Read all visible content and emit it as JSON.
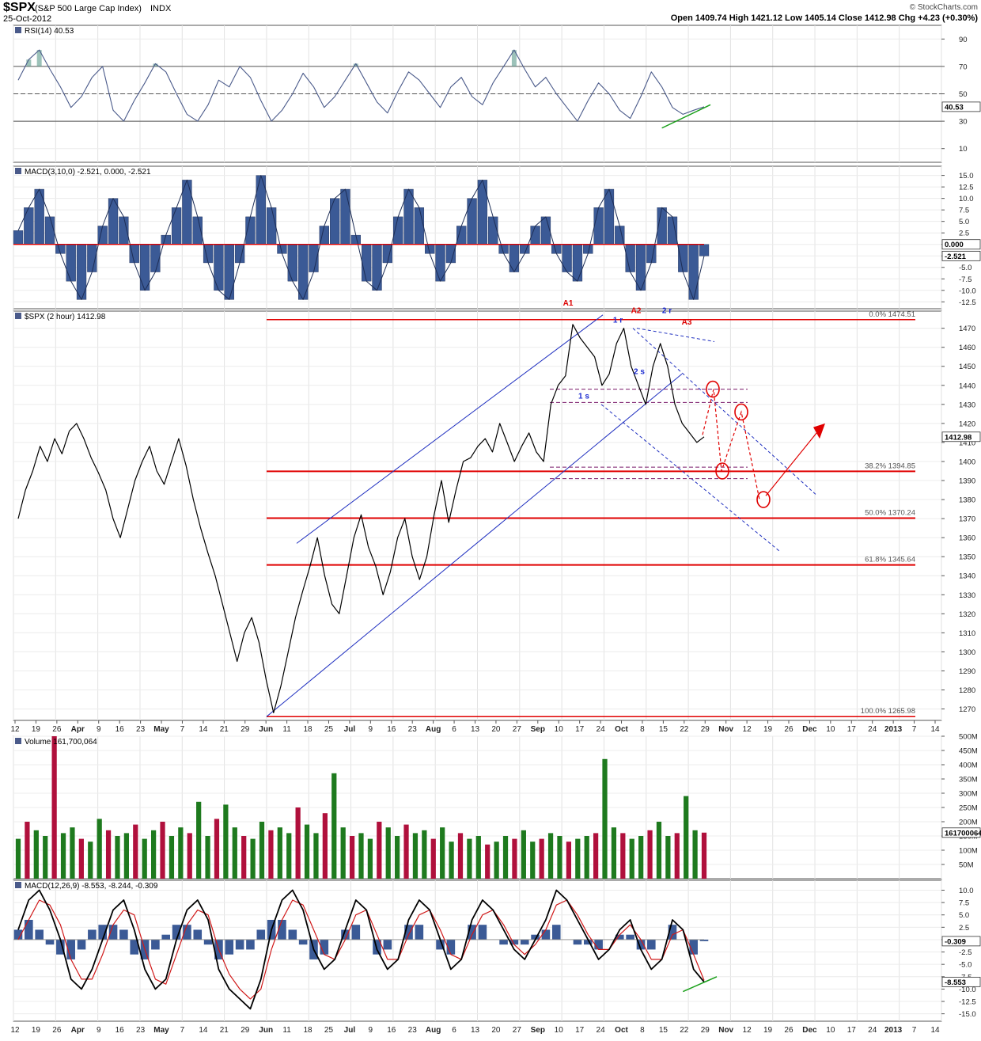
{
  "header": {
    "symbol": "$SPX",
    "name": "(S&P 500 Large Cap Index)",
    "exchange": "INDX",
    "date": "25-Oct-2012",
    "watermark": "© StockCharts.com",
    "ohlc": "Open 1409.74  High 1421.12  Low 1405.14  Close 1412.98  Chg +4.23 (+0.30%)"
  },
  "colors": {
    "price": "#000000",
    "indicator_line": "#4a5a8a",
    "histogram_fill": "#3b5a96",
    "overbought_fill": "#5a9a8a",
    "fib_line": "#e00000",
    "channel": "#2030c0",
    "projection": "#e00000",
    "vol_up": "#1e7a1e",
    "vol_down": "#b0103c"
  },
  "chart_data": [
    {
      "type": "line",
      "panel": "rsi",
      "label": "RSI(14) 40.53",
      "ylim": [
        0,
        100
      ],
      "y_ticks": [
        10,
        30,
        50,
        70,
        90
      ],
      "reference_lines": [
        30,
        50,
        70
      ],
      "last_value_label": "40.53",
      "divergence_annotation": "green support line",
      "series": [
        {
          "name": "RSI(14)",
          "values": [
            60,
            75,
            82,
            68,
            55,
            40,
            48,
            62,
            70,
            38,
            30,
            45,
            58,
            72,
            66,
            50,
            35,
            30,
            42,
            60,
            55,
            70,
            62,
            45,
            30,
            38,
            50,
            65,
            55,
            40,
            48,
            60,
            72,
            58,
            44,
            36,
            52,
            66,
            60,
            50,
            40,
            55,
            62,
            48,
            42,
            58,
            70,
            82,
            68,
            55,
            62,
            50,
            40,
            30,
            45,
            58,
            50,
            38,
            32,
            48,
            66,
            55,
            40,
            35,
            38,
            40.53
          ]
        }
      ]
    },
    {
      "type": "bar",
      "panel": "macd_fast",
      "label": "MACD(3,10,0) -2.521, 0.000, -2.521",
      "ylim": [
        -14,
        17
      ],
      "y_ticks": [
        -12.5,
        -10.0,
        -7.5,
        -5.0,
        -2.5,
        0.0,
        2.5,
        5.0,
        7.5,
        10.0,
        12.5,
        15.0
      ],
      "last_value_labels": [
        "0.000",
        "-2.521"
      ],
      "series": [
        {
          "name": "MACD(3,10,0)",
          "values": [
            3,
            8,
            12,
            6,
            -2,
            -8,
            -12,
            -6,
            4,
            10,
            6,
            -4,
            -10,
            -6,
            2,
            8,
            14,
            6,
            -4,
            -10,
            -12,
            -4,
            6,
            15,
            8,
            -2,
            -8,
            -12,
            -6,
            4,
            10,
            12,
            2,
            -8,
            -10,
            -4,
            6,
            12,
            8,
            -2,
            -8,
            -4,
            4,
            10,
            14,
            6,
            -2,
            -6,
            -2,
            4,
            6,
            -2,
            -6,
            -8,
            -2,
            8,
            12,
            4,
            -6,
            -10,
            -4,
            8,
            6,
            -6,
            -12,
            -2.521
          ]
        }
      ]
    },
    {
      "type": "line",
      "panel": "price",
      "label": "$SPX (2 hour) 1412.98",
      "ylim": [
        1264,
        1479
      ],
      "y_ticks": [
        1270,
        1280,
        1290,
        1300,
        1310,
        1320,
        1330,
        1340,
        1350,
        1360,
        1370,
        1380,
        1390,
        1400,
        1410,
        1420,
        1430,
        1440,
        1450,
        1460,
        1470
      ],
      "x_tick_labels": [
        "12",
        "19",
        "26",
        "Apr",
        "9",
        "16",
        "23",
        "May",
        "7",
        "14",
        "21",
        "29",
        "Jun",
        "11",
        "18",
        "25",
        "Jul",
        "9",
        "16",
        "23",
        "Aug",
        "6",
        "13",
        "20",
        "27",
        "Sep",
        "10",
        "17",
        "24",
        "Oct",
        "8",
        "15",
        "22",
        "29",
        "Nov",
        "12",
        "19",
        "26",
        "Dec",
        "10",
        "17",
        "24",
        "2013",
        "7",
        "14"
      ],
      "last_value_label": "1412.98",
      "series": [
        {
          "name": "$SPX",
          "values": [
            1370,
            1385,
            1395,
            1408,
            1400,
            1412,
            1404,
            1416,
            1420,
            1412,
            1402,
            1394,
            1385,
            1370,
            1360,
            1375,
            1390,
            1400,
            1408,
            1395,
            1388,
            1400,
            1412,
            1398,
            1380,
            1365,
            1352,
            1340,
            1325,
            1310,
            1295,
            1310,
            1318,
            1305,
            1285,
            1268,
            1282,
            1300,
            1318,
            1332,
            1345,
            1360,
            1340,
            1325,
            1320,
            1340,
            1360,
            1372,
            1355,
            1345,
            1330,
            1342,
            1360,
            1370,
            1350,
            1338,
            1350,
            1372,
            1390,
            1368,
            1385,
            1400,
            1402,
            1408,
            1412,
            1405,
            1420,
            1410,
            1400,
            1408,
            1415,
            1405,
            1400,
            1430,
            1440,
            1445,
            1472,
            1465,
            1460,
            1455,
            1440,
            1446,
            1462,
            1470,
            1450,
            1440,
            1430,
            1450,
            1462,
            1450,
            1430,
            1420,
            1415,
            1410,
            1412.98
          ]
        }
      ],
      "fib_levels": [
        {
          "label": "0.0% 1474.51",
          "value": 1474.51
        },
        {
          "label": "38.2% 1394.85",
          "value": 1394.85
        },
        {
          "label": "50.0% 1370.24",
          "value": 1370.24
        },
        {
          "label": "61.8% 1345.64",
          "value": 1345.64
        },
        {
          "label": "100.0% 1265.98",
          "value": 1265.98
        }
      ],
      "wave_labels": [
        {
          "text": "A1",
          "color": "red"
        },
        {
          "text": "A2",
          "color": "red"
        },
        {
          "text": "A3",
          "color": "red"
        },
        {
          "text": "1 r",
          "color": "blue"
        },
        {
          "text": "2 r",
          "color": "blue"
        },
        {
          "text": "1 s",
          "color": "blue"
        },
        {
          "text": "2 s",
          "color": "blue"
        }
      ]
    },
    {
      "type": "bar",
      "panel": "volume",
      "label": "Volume 161,700,064",
      "ylim": [
        0,
        500000000
      ],
      "y_tick_labels": [
        "50M",
        "100M",
        "150M",
        "200M",
        "250M",
        "300M",
        "350M",
        "400M",
        "450M",
        "500M"
      ],
      "last_value_label": "161700064",
      "series": [
        {
          "name": "Volume",
          "values": [
            140000000,
            200000000,
            170000000,
            150000000,
            500000000,
            160000000,
            180000000,
            140000000,
            130000000,
            210000000,
            170000000,
            150000000,
            160000000,
            190000000,
            140000000,
            170000000,
            200000000,
            150000000,
            180000000,
            160000000,
            270000000,
            150000000,
            210000000,
            260000000,
            180000000,
            150000000,
            140000000,
            200000000,
            170000000,
            180000000,
            160000000,
            250000000,
            190000000,
            160000000,
            230000000,
            370000000,
            180000000,
            150000000,
            160000000,
            140000000,
            200000000,
            180000000,
            150000000,
            190000000,
            160000000,
            170000000,
            140000000,
            180000000,
            130000000,
            160000000,
            140000000,
            150000000,
            120000000,
            130000000,
            150000000,
            140000000,
            170000000,
            130000000,
            140000000,
            160000000,
            150000000,
            130000000,
            140000000,
            150000000,
            160000000,
            420000000,
            180000000,
            160000000,
            140000000,
            150000000,
            170000000,
            200000000,
            150000000,
            160000000,
            290000000,
            170000000,
            161700064
          ]
        }
      ]
    },
    {
      "type": "line",
      "panel": "macd_slow",
      "label": "MACD(12,26,9) -8.553, -8.244, -0.309",
      "ylim": [
        -16.5,
        12
      ],
      "y_ticks": [
        -15.0,
        -12.5,
        -10.0,
        -7.5,
        -5.0,
        -2.5,
        0.0,
        2.5,
        5.0,
        7.5,
        10.0
      ],
      "last_value_labels": [
        "-0.309",
        "-8.553"
      ],
      "series": [
        {
          "name": "MACD",
          "values": [
            2,
            8,
            10,
            6,
            0,
            -8,
            -10,
            -6,
            0,
            6,
            8,
            2,
            -6,
            -10,
            -8,
            0,
            6,
            8,
            4,
            -6,
            -10,
            -12,
            -14,
            -8,
            2,
            8,
            10,
            6,
            -2,
            -6,
            -4,
            2,
            8,
            6,
            -2,
            -6,
            -4,
            4,
            8,
            6,
            0,
            -6,
            -4,
            4,
            8,
            6,
            2,
            -2,
            -4,
            0,
            4,
            10,
            8,
            4,
            0,
            -4,
            -2,
            2,
            4,
            -2,
            -6,
            -4,
            4,
            2,
            -6,
            -8.553
          ]
        },
        {
          "name": "Signal",
          "values": [
            0,
            4,
            8,
            7,
            3,
            -4,
            -8,
            -8,
            -3,
            3,
            6,
            5,
            -2,
            -8,
            -9,
            -3,
            3,
            6,
            5,
            -2,
            -7,
            -10,
            -12,
            -10,
            -2,
            4,
            8,
            7,
            2,
            -3,
            -4,
            0,
            5,
            6,
            1,
            -4,
            -4,
            1,
            5,
            6,
            2,
            -3,
            -4,
            1,
            5,
            6,
            3,
            -1,
            -3,
            -1,
            2,
            7,
            8,
            5,
            1,
            -2,
            -2,
            1,
            3,
            0,
            -4,
            -4,
            1,
            2,
            -3,
            -8.244
          ]
        },
        {
          "name": "Histogram",
          "values": [
            2,
            4,
            2,
            -1,
            -3,
            -4,
            -2,
            2,
            3,
            3,
            2,
            -3,
            -4,
            -2,
            1,
            3,
            3,
            2,
            -1,
            -4,
            -3,
            -2,
            -2,
            2,
            4,
            4,
            2,
            -1,
            -4,
            -3,
            0,
            2,
            3,
            0,
            -3,
            -2,
            0,
            3,
            3,
            0,
            -2,
            -3,
            0,
            3,
            3,
            0,
            -1,
            -1,
            -1,
            1,
            2,
            3,
            0,
            -1,
            -1,
            -2,
            0,
            1,
            1,
            -2,
            -2,
            0,
            3,
            0,
            -3,
            -0.309
          ]
        }
      ]
    }
  ]
}
